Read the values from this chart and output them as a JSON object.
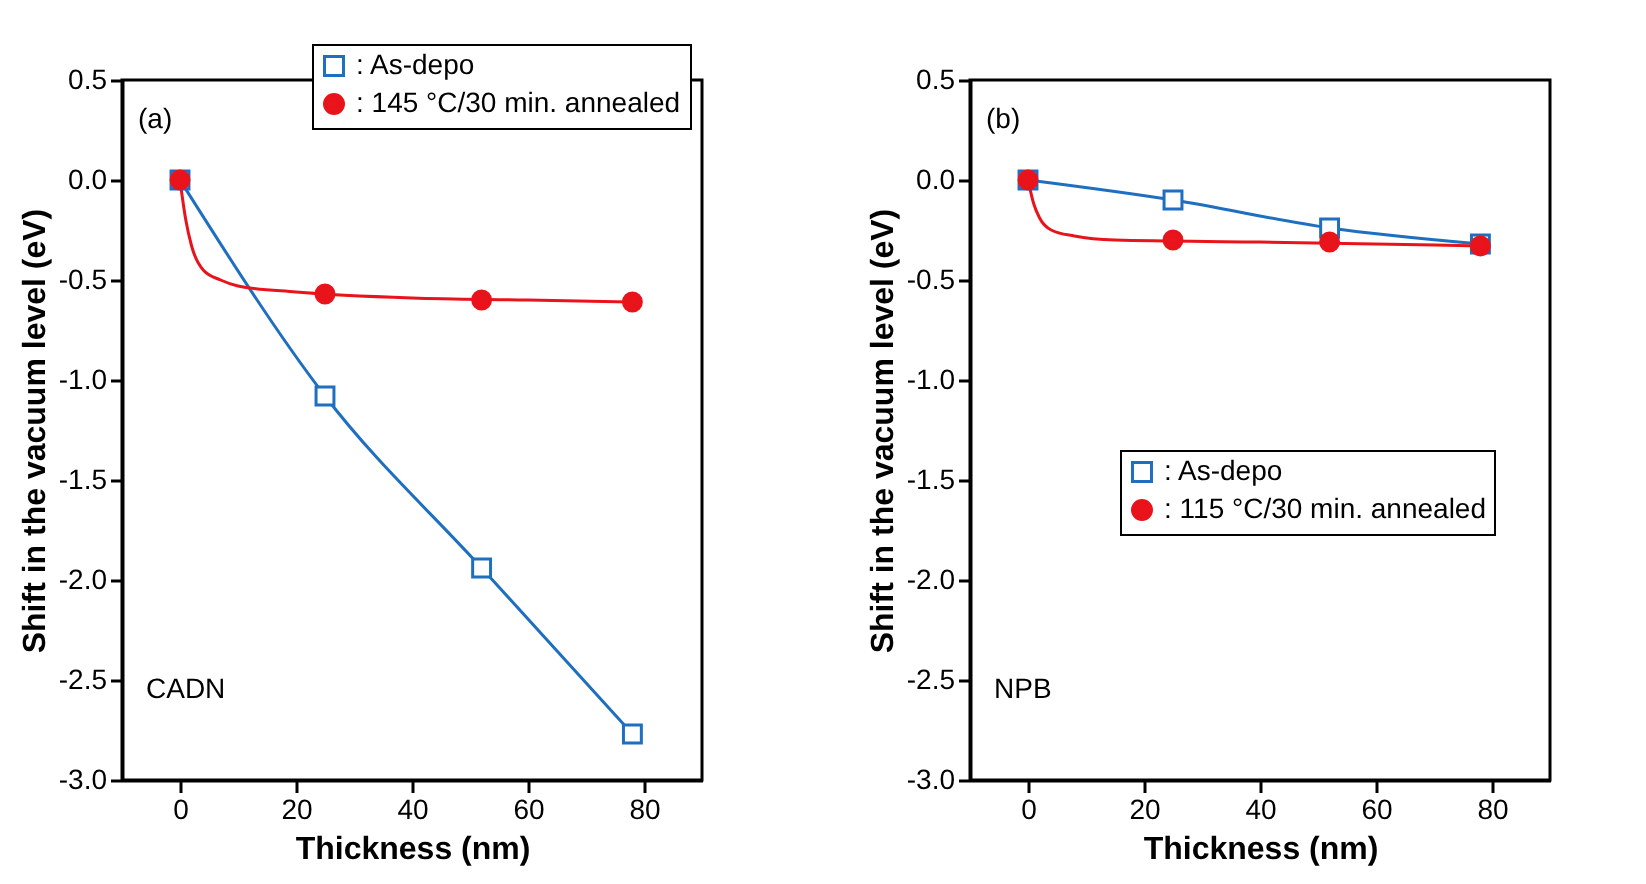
{
  "chart_data": [
    {
      "type": "line",
      "xlabel": "Thickness (nm)",
      "ylabel": "Shift in the vacuum level (eV)",
      "annotations": [
        "(a)",
        "CADN"
      ],
      "xlim": [
        -10,
        90
      ],
      "xticks": [
        0,
        20,
        40,
        60,
        80
      ],
      "ylim": [
        -3,
        0.5
      ],
      "yticks": [
        {
          "value": -3,
          "label": "-3.0"
        },
        {
          "value": -2.5,
          "label": "-2.5"
        },
        {
          "value": -2,
          "label": "-2.0"
        },
        {
          "value": -1.5,
          "label": "-1.5"
        },
        {
          "value": -1,
          "label": "-1.0"
        },
        {
          "value": -0.5,
          "label": "-0.5"
        },
        {
          "value": 0,
          "label": "0.0"
        },
        {
          "value": 0.5,
          "label": "0.5"
        }
      ],
      "legend": "top right",
      "grid": false,
      "series": [
        {
          "type": "line",
          "name": ": As-depo",
          "color": "#1f6fc0",
          "marker": "square",
          "x": [
            0,
            25,
            52,
            78
          ],
          "values": [
            0,
            -1.08,
            -1.94,
            -2.77
          ]
        },
        {
          "type": "scatter",
          "name": ": 145 °C/30 min. annealed",
          "color": "#e8131b",
          "marker": "circle",
          "x": [
            0,
            25,
            52,
            78
          ],
          "values": [
            0,
            -0.57,
            -0.6,
            -0.61
          ]
        },
        {
          "type": "line",
          "color": "#e8131b",
          "marker": "none",
          "x": [
            0,
            1,
            2,
            4,
            7,
            10,
            20,
            40,
            60,
            78
          ],
          "values": [
            0,
            -0.2,
            -0.33,
            -0.45,
            -0.5,
            -0.53,
            -0.56,
            -0.59,
            -0.6,
            -0.61
          ]
        }
      ]
    },
    {
      "type": "line",
      "xlabel": "Thickness (nm)",
      "ylabel": "Shift in the vacuum level (eV)",
      "annotations": [
        "(b)",
        "NPB"
      ],
      "xlim": [
        -10,
        90
      ],
      "xticks": [
        0,
        20,
        40,
        60,
        80
      ],
      "ylim": [
        -3,
        0.5
      ],
      "yticks": [
        {
          "value": -3,
          "label": "-3.0"
        },
        {
          "value": -2.5,
          "label": "-2.5"
        },
        {
          "value": -2,
          "label": "-2.0"
        },
        {
          "value": -1.5,
          "label": "-1.5"
        },
        {
          "value": -1,
          "label": "-1.0"
        },
        {
          "value": -0.5,
          "label": "-0.5"
        },
        {
          "value": 0,
          "label": "0.0"
        },
        {
          "value": 0.5,
          "label": "0.5"
        }
      ],
      "legend": "right",
      "grid": false,
      "series": [
        {
          "type": "line",
          "name": ": As-depo",
          "color": "#1f6fc0",
          "marker": "square",
          "x": [
            0,
            25,
            52,
            78
          ],
          "values": [
            0,
            -0.1,
            -0.24,
            -0.32
          ]
        },
        {
          "type": "scatter",
          "name": ": 115 °C/30 min. annealed",
          "color": "#e8131b",
          "marker": "circle",
          "x": [
            0,
            25,
            52,
            78
          ],
          "values": [
            0,
            -0.3,
            -0.31,
            -0.33
          ]
        },
        {
          "type": "line",
          "color": "#e8131b",
          "marker": "none",
          "x": [
            0,
            1,
            2,
            4,
            8,
            15,
            40,
            78
          ],
          "values": [
            0,
            -0.12,
            -0.19,
            -0.25,
            -0.28,
            -0.3,
            -0.31,
            -0.33
          ]
        }
      ]
    }
  ]
}
